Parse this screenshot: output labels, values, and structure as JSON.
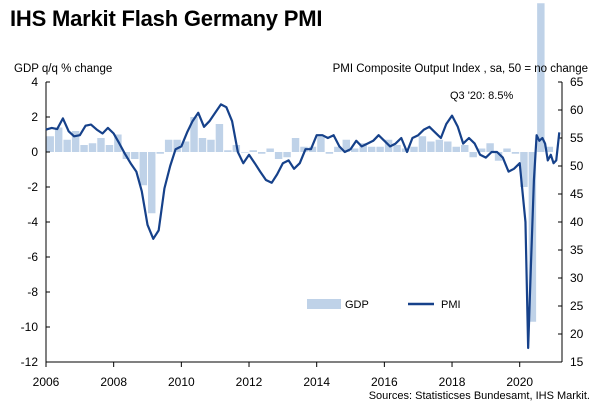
{
  "chart_data": {
    "type": "bar+line",
    "title": "IHS Markit Flash Germany PMI",
    "left_axis_label": "GDP q/q % change",
    "right_axis_label": "PMI Composite  Output  Index  , sa, 50 = no change",
    "left_ylim": [
      -12,
      4
    ],
    "left_ticks": [
      "4",
      "2",
      "0",
      "-2",
      "-4",
      "-6",
      "-8",
      "-10",
      "-12"
    ],
    "right_ylim": [
      15,
      65
    ],
    "right_ticks": [
      "65",
      "60",
      "55",
      "50",
      "45",
      "40",
      "35",
      "30",
      "25",
      "20",
      "15"
    ],
    "x_range": [
      2006,
      2021.25
    ],
    "x_ticks": [
      "2006",
      "2008",
      "2010",
      "2012",
      "2014",
      "2016",
      "2018",
      "2020"
    ],
    "annotation": "Q3 '20: 8.5%",
    "source": "Sources: Statisticses Bundesamt, IHS Markit.",
    "legend": [
      "GDP",
      "PMI"
    ],
    "series": [
      {
        "name": "GDP",
        "kind": "bar",
        "color": "#bfd2e8",
        "quarters": [
          "2006Q1",
          "2006Q2",
          "2006Q3",
          "2006Q4",
          "2007Q1",
          "2007Q2",
          "2007Q3",
          "2007Q4",
          "2008Q1",
          "2008Q2",
          "2008Q3",
          "2008Q4",
          "2009Q1",
          "2009Q2",
          "2009Q3",
          "2009Q4",
          "2010Q1",
          "2010Q2",
          "2010Q3",
          "2010Q4",
          "2011Q1",
          "2011Q2",
          "2011Q3",
          "2011Q4",
          "2012Q1",
          "2012Q2",
          "2012Q3",
          "2012Q4",
          "2013Q1",
          "2013Q2",
          "2013Q3",
          "2013Q4",
          "2014Q1",
          "2014Q2",
          "2014Q3",
          "2014Q4",
          "2015Q1",
          "2015Q2",
          "2015Q3",
          "2015Q4",
          "2016Q1",
          "2016Q2",
          "2016Q3",
          "2016Q4",
          "2017Q1",
          "2017Q2",
          "2017Q3",
          "2017Q4",
          "2018Q1",
          "2018Q2",
          "2018Q3",
          "2018Q4",
          "2019Q1",
          "2019Q2",
          "2019Q3",
          "2019Q4",
          "2020Q1",
          "2020Q2",
          "2020Q3",
          "2020Q4"
        ],
        "values": [
          0.9,
          1.4,
          0.7,
          1.2,
          0.4,
          0.5,
          0.8,
          0.4,
          1.0,
          -0.4,
          -0.4,
          -1.9,
          -3.5,
          -0.1,
          0.7,
          0.7,
          0.6,
          2.0,
          0.8,
          0.7,
          1.6,
          0.1,
          0.4,
          0.0,
          0.1,
          -0.1,
          0.2,
          -0.4,
          -0.3,
          0.8,
          0.3,
          0.3,
          0.9,
          -0.1,
          0.3,
          0.7,
          0.2,
          0.5,
          0.3,
          0.3,
          0.7,
          0.4,
          0.2,
          0.3,
          0.9,
          0.6,
          0.7,
          0.6,
          0.3,
          0.4,
          -0.3,
          0.2,
          0.5,
          -0.5,
          0.2,
          -0.1,
          -2.0,
          -9.7,
          8.5,
          0.3
        ]
      },
      {
        "name": "PMI",
        "kind": "line",
        "color": "#16418a",
        "points": [
          [
            2006.0,
            56.5
          ],
          [
            2006.17,
            56.8
          ],
          [
            2006.33,
            56.6
          ],
          [
            2006.5,
            58.5
          ],
          [
            2006.67,
            56.2
          ],
          [
            2006.83,
            55.3
          ],
          [
            2007.0,
            55.5
          ],
          [
            2007.17,
            57.2
          ],
          [
            2007.33,
            57.4
          ],
          [
            2007.5,
            56.5
          ],
          [
            2007.67,
            55.8
          ],
          [
            2007.83,
            56.8
          ],
          [
            2008.0,
            55.8
          ],
          [
            2008.17,
            54.0
          ],
          [
            2008.33,
            52.2
          ],
          [
            2008.5,
            50.5
          ],
          [
            2008.67,
            49.0
          ],
          [
            2008.83,
            45.5
          ],
          [
            2009.0,
            39.5
          ],
          [
            2009.17,
            37.0
          ],
          [
            2009.33,
            38.5
          ],
          [
            2009.5,
            46.0
          ],
          [
            2009.67,
            50.0
          ],
          [
            2009.83,
            53.0
          ],
          [
            2010.0,
            53.5
          ],
          [
            2010.17,
            56.0
          ],
          [
            2010.33,
            58.0
          ],
          [
            2010.5,
            59.5
          ],
          [
            2010.67,
            57.0
          ],
          [
            2010.83,
            58.0
          ],
          [
            2011.0,
            59.5
          ],
          [
            2011.17,
            61.0
          ],
          [
            2011.33,
            60.5
          ],
          [
            2011.5,
            58.0
          ],
          [
            2011.67,
            52.5
          ],
          [
            2011.83,
            50.5
          ],
          [
            2012.0,
            52.0
          ],
          [
            2012.17,
            50.5
          ],
          [
            2012.33,
            49.0
          ],
          [
            2012.5,
            47.5
          ],
          [
            2012.67,
            47.0
          ],
          [
            2012.83,
            48.5
          ],
          [
            2013.0,
            50.5
          ],
          [
            2013.17,
            51.0
          ],
          [
            2013.33,
            49.5
          ],
          [
            2013.5,
            50.5
          ],
          [
            2013.67,
            53.0
          ],
          [
            2013.83,
            53.0
          ],
          [
            2014.0,
            55.5
          ],
          [
            2014.17,
            55.5
          ],
          [
            2014.33,
            55.0
          ],
          [
            2014.5,
            55.5
          ],
          [
            2014.67,
            53.5
          ],
          [
            2014.83,
            52.5
          ],
          [
            2015.0,
            53.0
          ],
          [
            2015.17,
            54.5
          ],
          [
            2015.33,
            53.5
          ],
          [
            2015.5,
            54.0
          ],
          [
            2015.67,
            54.5
          ],
          [
            2015.83,
            55.5
          ],
          [
            2016.0,
            54.5
          ],
          [
            2016.17,
            53.5
          ],
          [
            2016.33,
            54.0
          ],
          [
            2016.5,
            55.0
          ],
          [
            2016.67,
            52.5
          ],
          [
            2016.83,
            55.0
          ],
          [
            2017.0,
            55.5
          ],
          [
            2017.17,
            56.5
          ],
          [
            2017.33,
            57.0
          ],
          [
            2017.5,
            56.0
          ],
          [
            2017.67,
            55.0
          ],
          [
            2017.83,
            57.5
          ],
          [
            2018.0,
            59.0
          ],
          [
            2018.17,
            57.0
          ],
          [
            2018.33,
            54.0
          ],
          [
            2018.5,
            55.0
          ],
          [
            2018.67,
            54.0
          ],
          [
            2018.83,
            52.0
          ],
          [
            2019.0,
            51.5
          ],
          [
            2019.17,
            52.5
          ],
          [
            2019.33,
            52.5
          ],
          [
            2019.5,
            51.5
          ],
          [
            2019.67,
            49.0
          ],
          [
            2019.83,
            49.5
          ],
          [
            2020.0,
            50.5
          ],
          [
            2020.17,
            40.0
          ],
          [
            2020.25,
            17.5
          ],
          [
            2020.33,
            32.0
          ],
          [
            2020.42,
            47.5
          ],
          [
            2020.5,
            55.5
          ],
          [
            2020.58,
            54.5
          ],
          [
            2020.67,
            55.0
          ],
          [
            2020.75,
            54.0
          ],
          [
            2020.83,
            51.0
          ],
          [
            2020.92,
            52.0
          ],
          [
            2021.0,
            50.5
          ],
          [
            2021.08,
            51.0
          ],
          [
            2021.17,
            56.0
          ]
        ]
      }
    ]
  }
}
